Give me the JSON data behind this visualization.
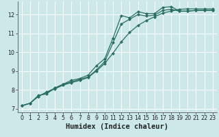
{
  "xlabel": "Humidex (Indice chaleur)",
  "bg_color": "#cce8e8",
  "grid_color": "#ffffff",
  "line_color": "#2a6e60",
  "xlim": [
    -0.5,
    23.5
  ],
  "ylim": [
    6.8,
    12.7
  ],
  "yticks": [
    7,
    8,
    9,
    10,
    11,
    12
  ],
  "xticks": [
    0,
    1,
    2,
    3,
    4,
    5,
    6,
    7,
    8,
    9,
    10,
    11,
    12,
    13,
    14,
    15,
    16,
    17,
    18,
    19,
    20,
    21,
    22,
    23
  ],
  "series1": {
    "x": [
      0,
      1,
      2,
      3,
      4,
      5,
      6,
      7,
      8,
      9,
      10,
      11,
      12,
      13,
      14,
      15,
      16,
      17,
      18,
      19,
      20,
      21,
      22,
      23
    ],
    "y": [
      7.15,
      7.28,
      7.7,
      7.78,
      8.1,
      8.3,
      8.5,
      8.6,
      8.78,
      9.28,
      9.65,
      10.75,
      11.95,
      11.82,
      12.15,
      12.05,
      12.05,
      12.38,
      12.42,
      12.18,
      12.18,
      12.22,
      12.22,
      12.22
    ]
  },
  "series2": {
    "x": [
      0,
      1,
      2,
      3,
      4,
      5,
      6,
      7,
      8,
      9,
      10,
      11,
      12,
      13,
      14,
      15,
      16,
      17,
      18,
      19,
      20,
      21,
      22,
      23
    ],
    "y": [
      7.15,
      7.28,
      7.65,
      7.85,
      8.05,
      8.25,
      8.38,
      8.5,
      8.65,
      9.0,
      9.4,
      9.95,
      10.55,
      11.05,
      11.42,
      11.68,
      11.88,
      12.08,
      12.18,
      12.28,
      12.3,
      12.3,
      12.3,
      12.3
    ]
  },
  "series3": {
    "x": [
      0,
      1,
      2,
      3,
      4,
      5,
      6,
      7,
      8,
      9,
      10,
      11,
      12,
      13,
      14,
      15,
      16,
      17,
      18,
      19,
      20,
      21,
      22,
      23
    ],
    "y": [
      7.15,
      7.28,
      7.65,
      7.88,
      8.08,
      8.28,
      8.42,
      8.55,
      8.68,
      9.05,
      9.5,
      10.5,
      11.5,
      11.75,
      12.0,
      11.92,
      11.97,
      12.22,
      12.28,
      12.18,
      12.18,
      12.22,
      12.22,
      12.22
    ]
  },
  "marker": "D",
  "marker_size": 2.2,
  "linewidth": 0.9,
  "tick_fontsize": 5.8,
  "label_fontsize": 7.5
}
